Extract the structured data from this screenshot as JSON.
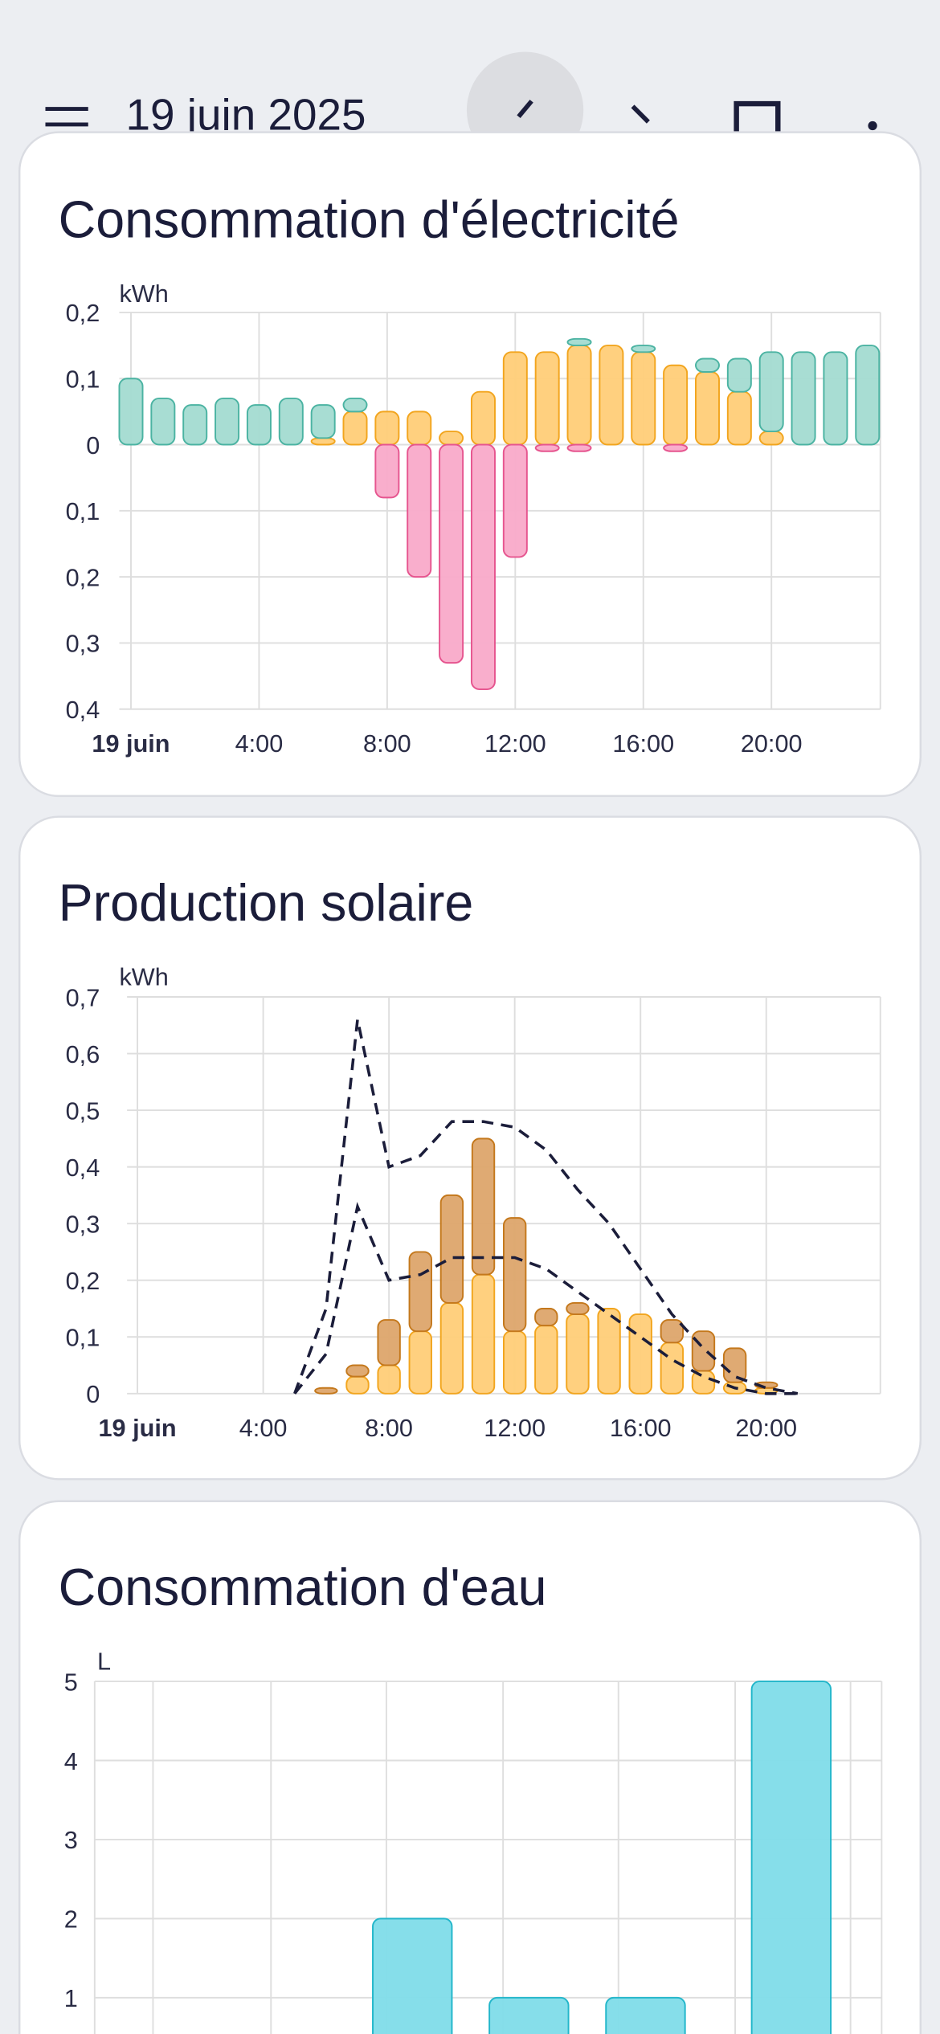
{
  "header": {
    "date": "19 juin 2025"
  },
  "chart_data": [
    {
      "type": "bar",
      "stacked": true,
      "title": "Consommation d'électricité",
      "y_label": "kWh",
      "categories": [
        "19 juin",
        null,
        null,
        null,
        "4:00",
        null,
        null,
        null,
        "8:00",
        null,
        null,
        null,
        "12:00",
        null,
        null,
        null,
        "16:00",
        null,
        null,
        null,
        "20:00",
        null,
        null,
        null
      ],
      "series": [
        {
          "color": "#ffcd78",
          "edge_color": "#f2a51e",
          "values": [
            null,
            null,
            null,
            null,
            null,
            null,
            0.01,
            0.05,
            0.05,
            0.05,
            0.02,
            0.08,
            0.14,
            0.14,
            0.15,
            0.15,
            0.14,
            0.12,
            0.11,
            0.08,
            0.02,
            null,
            null,
            null
          ]
        },
        {
          "color": "#a3dbd1",
          "edge_color": "#4bb3a2",
          "values": [
            0.1,
            0.07,
            0.06,
            0.07,
            0.06,
            0.07,
            0.05,
            0.02,
            null,
            null,
            null,
            null,
            null,
            null,
            0.01,
            null,
            0.01,
            null,
            0.02,
            0.05,
            0.12,
            0.14,
            0.14,
            0.15
          ]
        },
        {
          "color": "#f9aac9",
          "edge_color": "#e6558f",
          "values": [
            null,
            null,
            null,
            null,
            null,
            null,
            null,
            null,
            -0.08,
            -0.2,
            -0.33,
            -0.37,
            -0.17,
            -0.01,
            -0.01,
            null,
            null,
            -0.01,
            null,
            null,
            null,
            null,
            null,
            null
          ]
        }
      ],
      "ylim": [
        -0.4,
        0.2
      ],
      "yticks": [
        {
          "value": -0.4,
          "label": "0,4"
        },
        {
          "value": -0.3,
          "label": "0,3"
        },
        {
          "value": -0.2,
          "label": "0,2"
        },
        {
          "value": -0.1,
          "label": "0,1"
        },
        0,
        {
          "value": 0.1,
          "label": "0,1"
        },
        {
          "value": 0.2,
          "label": "0,2"
        }
      ],
      "grid": true
    },
    {
      "type": "bar",
      "stacked": true,
      "title": "Production solaire",
      "y_label": "kWh",
      "categories": [
        "19 juin",
        null,
        null,
        null,
        "4:00",
        null,
        null,
        null,
        "8:00",
        null,
        null,
        null,
        "12:00",
        null,
        null,
        null,
        "16:00",
        null,
        null,
        null,
        "20:00",
        null,
        null,
        null
      ],
      "series": [
        {
          "color": "#ffcd78",
          "edge_color": "#f2a51e",
          "values": [
            null,
            null,
            null,
            null,
            null,
            null,
            null,
            0.03,
            0.05,
            0.11,
            0.16,
            0.21,
            0.11,
            0.12,
            0.14,
            0.15,
            0.14,
            0.09,
            0.04,
            0.02,
            0.01,
            null,
            null,
            null
          ]
        },
        {
          "color": "#dda56b",
          "edge_color": "#c4781c",
          "values": [
            null,
            null,
            null,
            null,
            null,
            null,
            0.01,
            0.02,
            0.08,
            0.14,
            0.19,
            0.24,
            0.2,
            0.03,
            0.02,
            null,
            null,
            0.04,
            0.07,
            0.06,
            0.01,
            null,
            null,
            null
          ]
        },
        {
          "type": "line",
          "dashed": true,
          "color": "#1b1d3a",
          "values": [
            null,
            null,
            null,
            null,
            null,
            0,
            0.15,
            0.66,
            0.4,
            0.42,
            0.48,
            0.48,
            0.47,
            0.43,
            0.36,
            0.3,
            0.22,
            0.14,
            0.08,
            0.03,
            0.01,
            0,
            null,
            null
          ]
        },
        {
          "type": "line",
          "dashed": true,
          "color": "#1b1d3a",
          "values": [
            null,
            null,
            null,
            null,
            null,
            0,
            0.07,
            0.33,
            0.2,
            0.21,
            0.24,
            0.24,
            0.24,
            0.22,
            0.18,
            0.14,
            0.1,
            0.06,
            0.03,
            0.01,
            0,
            0,
            null,
            null
          ]
        }
      ],
      "ylim": [
        0,
        0.7
      ],
      "yticks": [
        0,
        {
          "value": 0.1,
          "label": "0,1"
        },
        {
          "value": 0.2,
          "label": "0,2"
        },
        {
          "value": 0.3,
          "label": "0,3"
        },
        {
          "value": 0.4,
          "label": "0,4"
        },
        {
          "value": 0.5,
          "label": "0,5"
        },
        {
          "value": 0.6,
          "label": "0,6"
        },
        {
          "value": 0.7,
          "label": "0,7"
        }
      ],
      "grid": true
    },
    {
      "type": "bar",
      "title": "Consommation d'eau",
      "y_label": "L",
      "series": [
        {
          "color": "#80dce9",
          "edge_color": "#22b6ca",
          "values": [
            null,
            null,
            null,
            null,
            null,
            null,
            null,
            null,
            null,
            null,
            2,
            null,
            null,
            null,
            1,
            null,
            null,
            null,
            1,
            null,
            null,
            null,
            null,
            5,
            null,
            null,
            null
          ]
        }
      ],
      "ylim": [
        0,
        5
      ],
      "yticks": [
        1,
        2,
        3,
        4,
        5
      ],
      "grid": true
    }
  ]
}
